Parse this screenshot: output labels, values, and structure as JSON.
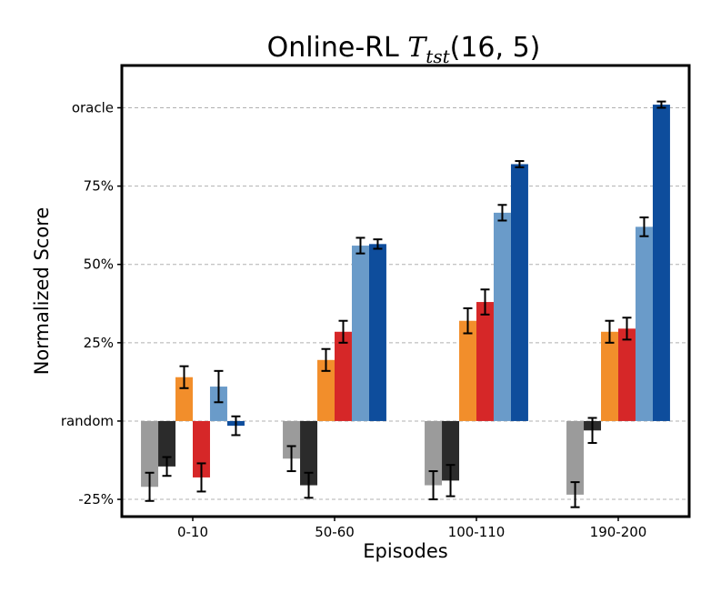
{
  "chart_data": {
    "type": "bar",
    "title": {
      "prefix": "Online-RL ",
      "math_symbol": "T",
      "math_subscript": "tst",
      "suffix": "(16, 5)"
    },
    "xlabel": "Episodes",
    "ylabel": "Normalized Score",
    "categories": [
      "0-10",
      "50-60",
      "100-110",
      "190-200"
    ],
    "y_ticks": [
      {
        "value": -25,
        "label": "-25%"
      },
      {
        "value": 0,
        "label": "random"
      },
      {
        "value": 25,
        "label": "25%"
      },
      {
        "value": 50,
        "label": "50%"
      },
      {
        "value": 75,
        "label": "75%"
      },
      {
        "value": 100,
        "label": "oracle"
      }
    ],
    "ylim": [
      -30.5,
      113.5
    ],
    "grid": "horizontal dashed",
    "series": [
      {
        "color": "#9b9b9b",
        "values": [
          -21,
          -12,
          -20.5,
          -23.5
        ],
        "errors": [
          4.5,
          4,
          4.5,
          4
        ]
      },
      {
        "color": "#2b2b2b",
        "values": [
          -14.5,
          -20.5,
          -19,
          -3
        ],
        "errors": [
          3,
          4,
          5,
          4
        ]
      },
      {
        "color": "#f28e2b",
        "values": [
          14,
          19.5,
          32,
          28.5
        ],
        "errors": [
          3.5,
          3.5,
          4,
          3.5
        ]
      },
      {
        "color": "#d62728",
        "values": [
          -18,
          28.5,
          38,
          29.5
        ],
        "errors": [
          4.5,
          3.5,
          4,
          3.5
        ]
      },
      {
        "color": "#6a9bc9",
        "values": [
          11,
          56,
          66.5,
          62
        ],
        "errors": [
          5,
          2.5,
          2.5,
          3
        ]
      },
      {
        "color": "#0e4d9c",
        "values": [
          -1.5,
          56.5,
          82,
          101
        ],
        "errors": [
          3,
          1.5,
          1,
          1
        ]
      }
    ]
  }
}
